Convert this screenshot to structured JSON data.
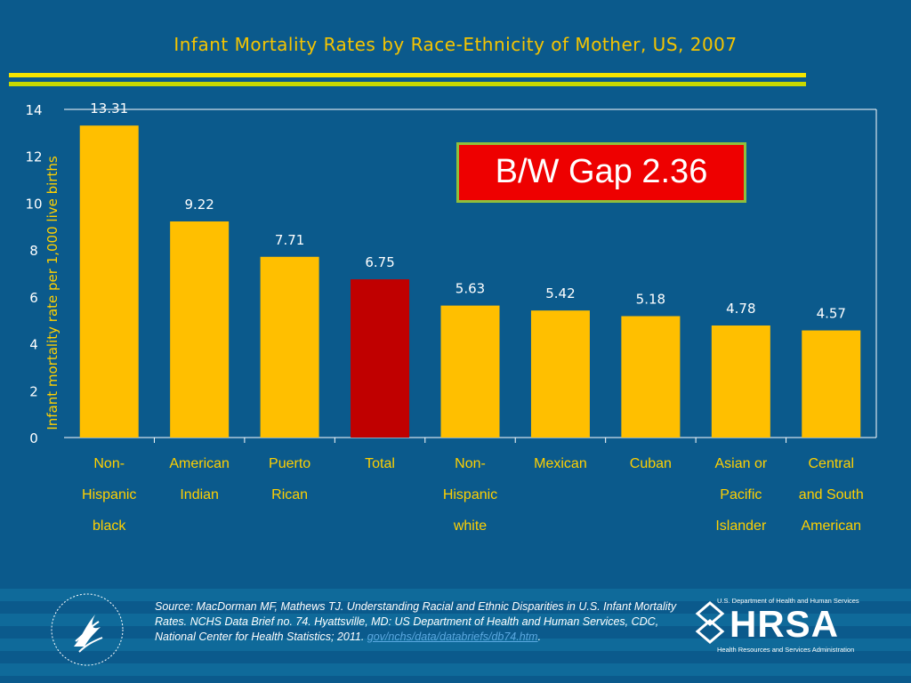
{
  "slide": {
    "title": "Infant Mortality Rates by Race-Ethnicity of Mother, US, 2007",
    "gap_label": "B/W Gap  2.36",
    "source_text": "Source: MacDorman MF, Mathews TJ. Understanding Racial and Ethnic Disparities in U.S. Infant Mortality Rates. NCHS Data Brief no. 74. Hyattsville, MD: US Department of Health and Human Services, CDC, National Center for Health Statistics; 2011. ",
    "source_link": "gov/nchs/data/databriefs/db74.htm",
    "source_end": ".",
    "logo_hhs": "hhs-eagle-seal-icon",
    "logo_hrsa_top": "U.S. Department of Health and Human Services",
    "logo_hrsa_word": "HRSA",
    "logo_hrsa_bottom": "Health Resources and Services Administration"
  },
  "chart_data": {
    "type": "bar",
    "title": "Infant Mortality Rates by Race-Ethnicity of Mother, US, 2007",
    "xlabel": "",
    "ylabel": "Infant mortality rate per 1,000 live births",
    "ylim": [
      0,
      14
    ],
    "yticks": [
      0,
      2,
      4,
      6,
      8,
      10,
      12,
      14
    ],
    "categories": [
      [
        "Non-",
        "Hispanic",
        "black"
      ],
      [
        "American",
        "Indian"
      ],
      [
        "Puerto",
        "Rican"
      ],
      [
        "Total"
      ],
      [
        "Non-",
        "Hispanic",
        "white"
      ],
      [
        "Mexican"
      ],
      [
        "Cuban"
      ],
      [
        "Asian or",
        "Pacific",
        "Islander"
      ],
      [
        "Central",
        "and South",
        "American"
      ]
    ],
    "values": [
      13.31,
      9.22,
      7.71,
      6.75,
      5.63,
      5.42,
      5.18,
      4.78,
      4.57
    ],
    "value_labels": [
      "13.31",
      "9.22",
      "7.71",
      "6.75",
      "5.63",
      "5.42",
      "5.18",
      "4.78",
      "4.57"
    ],
    "highlight_index": 3,
    "colors": {
      "bar": "#ffbf00",
      "highlight": "#c00000",
      "text": "#ffffff",
      "value_text": "#ffffff",
      "category_text": "#ffd000",
      "ylabel_text": "#ffd000"
    },
    "grid": false,
    "legend": "none"
  }
}
